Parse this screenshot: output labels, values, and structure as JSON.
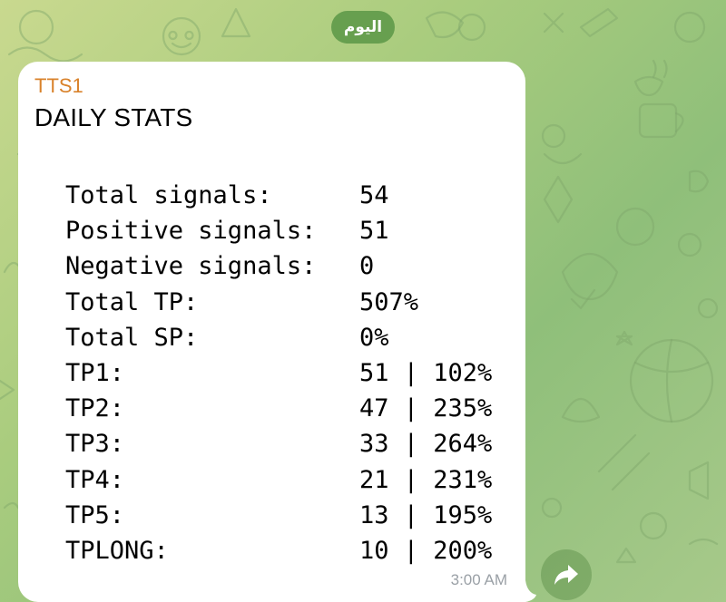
{
  "date_pill": {
    "label": "اليوم"
  },
  "message": {
    "sender": "TTS1",
    "title": "DAILY STATS",
    "stats": [
      {
        "label": "Total signals:",
        "value": "54"
      },
      {
        "label": "Positive signals:",
        "value": "51"
      },
      {
        "label": "Negative signals:",
        "value": "0"
      },
      {
        "label": "Total TP:",
        "value": "507%"
      },
      {
        "label": "Total SP:",
        "value": "0%"
      },
      {
        "label": "TP1:",
        "value": "51 | 102%"
      },
      {
        "label": "TP2:",
        "value": "47 | 235%"
      },
      {
        "label": "TP3:",
        "value": "33 | 264%"
      },
      {
        "label": "TP4:",
        "value": "21 | 231%"
      },
      {
        "label": "TP5:",
        "value": "13 | 195%"
      },
      {
        "label": "TPLONG:",
        "value": "10 | 200%"
      }
    ],
    "time": "3:00 AM"
  },
  "share_button": {
    "icon": "share-arrow-icon"
  }
}
